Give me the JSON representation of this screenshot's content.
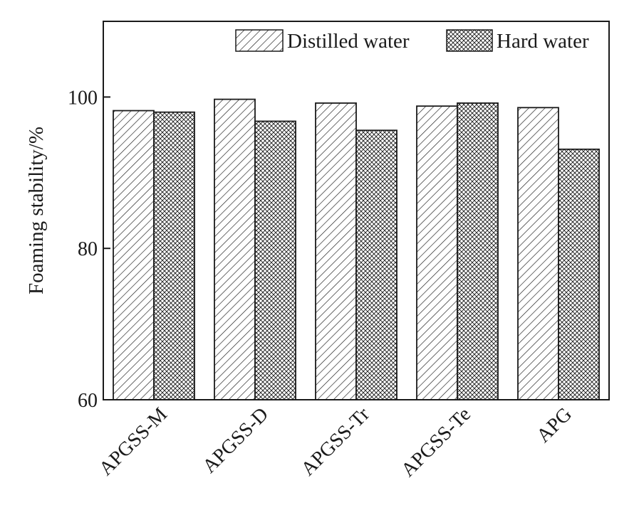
{
  "chart_data": {
    "type": "bar",
    "categories": [
      "APGSS-M",
      "APGSS-D",
      "APGSS-Tr",
      "APGSS-Te",
      "APG"
    ],
    "series": [
      {
        "name": "Distilled water",
        "values": [
          98.2,
          99.7,
          99.2,
          98.8,
          98.6
        ],
        "pattern": "diagonal-hatch"
      },
      {
        "name": "Hard water",
        "values": [
          98.0,
          96.8,
          95.6,
          99.2,
          93.1
        ],
        "pattern": "crosshatch"
      }
    ],
    "xlabel": "",
    "ylabel": "Foaming stability/%",
    "ylim": [
      60,
      110
    ],
    "yticks": [
      60,
      80,
      100
    ],
    "grid": false,
    "legend_position": "top-right",
    "colors": {
      "bar_fill": "#ffffff",
      "stroke": "#1a1a1a"
    }
  }
}
